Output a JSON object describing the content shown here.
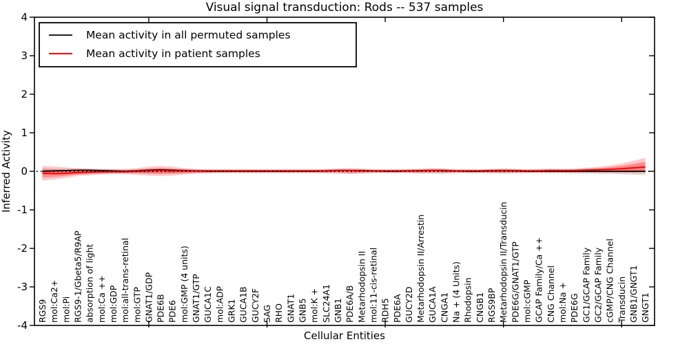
{
  "chart_data": {
    "type": "line",
    "title": "Visual signal transduction: Rods -- 537 samples",
    "xlabel": "Cellular Entities",
    "ylabel": "Inferred Activity",
    "ylim": [
      -4,
      4
    ],
    "yticks": [
      -4,
      -3,
      -2,
      -1,
      0,
      1,
      2,
      3,
      4
    ],
    "xtick_major_indices": [
      9,
      19,
      29,
      39,
      49
    ],
    "grid": false,
    "legend_position": "upper left",
    "zero_reference_line": true,
    "categories": [
      "RGS9",
      "mol:Ca2+",
      "mol:Pi",
      "RGS9-1/Gbeta5/R9AP",
      "absorption of light",
      "mol:Ca ++",
      "mol:GDP",
      "mol:all-trans-retinal",
      "mol:GTP",
      "GNAT1/GDP",
      "PDE6B",
      "PDE6",
      "mol:GMP (4 units)",
      "GNAT1/GTP",
      "GUCA1C",
      "mol:ADP",
      "GRK1",
      "GUCA1B",
      "GUCY2F",
      "SAG",
      "RHO",
      "GNAT1",
      "GNB5",
      "mol:K +",
      "SLC24A1",
      "GNB1",
      "PDE6A/B",
      "Metarhodopsin II",
      "mol:11-cis-retinal",
      "RDH5",
      "PDE6A",
      "GUCY2D",
      "Metarhodopsin II/Arrestin",
      "GUCA1A",
      "CNGA1",
      "Na + (4 Units)",
      "Rhodopsin",
      "CNGB1",
      "RGS9BP",
      "Metarhodopsin II/Transducin",
      "PDE6G/GNAT1/GTP",
      "mol:cGMP",
      "GCAP Family/Ca ++",
      "CNG Channel",
      "mol:Na +",
      "PDE6G",
      "GC1/GCAP Family",
      "GC2/GCAP Family",
      "cGMP/CNG Channel",
      "Transducin",
      "GNB1/GNGT1",
      "GNGT1"
    ],
    "series": [
      {
        "name": "Mean activity in all permuted samples",
        "color": "#000000",
        "band_color": "#999999",
        "band_opacity": 0.3,
        "inner_band": false,
        "values": [
          0.0,
          0.01,
          0.02,
          0.03,
          0.03,
          0.02,
          0.01,
          0.0,
          0.01,
          0.03,
          0.04,
          0.03,
          0.02,
          0.01,
          0.0,
          0.0,
          0.0,
          0.0,
          0.0,
          0.0,
          0.0,
          0.0,
          0.0,
          0.0,
          0.01,
          0.02,
          0.02,
          0.02,
          0.01,
          0.0,
          0.0,
          0.01,
          0.01,
          0.02,
          0.01,
          0.01,
          0.0,
          0.0,
          0.01,
          0.01,
          0.01,
          0.0,
          0.0,
          0.0,
          0.0,
          0.0,
          0.0,
          0.0,
          0.0,
          0.0,
          0.0,
          0.0
        ],
        "band_upper": [
          0.08,
          0.07,
          0.07,
          0.07,
          0.06,
          0.06,
          0.05,
          0.05,
          0.05,
          0.06,
          0.07,
          0.06,
          0.06,
          0.05,
          0.05,
          0.05,
          0.05,
          0.05,
          0.05,
          0.05,
          0.05,
          0.05,
          0.05,
          0.05,
          0.05,
          0.06,
          0.06,
          0.06,
          0.05,
          0.05,
          0.05,
          0.05,
          0.06,
          0.06,
          0.06,
          0.05,
          0.05,
          0.05,
          0.05,
          0.06,
          0.05,
          0.05,
          0.05,
          0.05,
          0.05,
          0.05,
          0.05,
          0.06,
          0.06,
          0.06,
          0.06,
          0.06
        ],
        "band_lower": [
          -0.08,
          -0.08,
          -0.07,
          -0.07,
          -0.06,
          -0.06,
          -0.05,
          -0.05,
          -0.05,
          -0.06,
          -0.07,
          -0.06,
          -0.06,
          -0.05,
          -0.05,
          -0.05,
          -0.05,
          -0.05,
          -0.05,
          -0.05,
          -0.05,
          -0.05,
          -0.05,
          -0.05,
          -0.05,
          -0.06,
          -0.06,
          -0.06,
          -0.05,
          -0.05,
          -0.05,
          -0.05,
          -0.06,
          -0.06,
          -0.06,
          -0.05,
          -0.05,
          -0.05,
          -0.05,
          -0.06,
          -0.05,
          -0.05,
          -0.05,
          -0.05,
          -0.05,
          -0.06,
          -0.06,
          -0.07,
          -0.07,
          -0.08,
          -0.09,
          -0.1
        ]
      },
      {
        "name": "Mean activity in patient samples",
        "color": "#ff0000",
        "band_color": "#ff0000",
        "band_opacity": 0.22,
        "inner_band": true,
        "values": [
          -0.05,
          -0.06,
          -0.05,
          -0.03,
          -0.02,
          -0.01,
          -0.01,
          -0.01,
          0.0,
          0.01,
          0.02,
          0.01,
          0.01,
          0.01,
          0.01,
          0.01,
          0.01,
          0.01,
          0.01,
          0.01,
          0.01,
          0.01,
          0.01,
          0.01,
          0.01,
          0.02,
          0.02,
          0.01,
          0.01,
          0.01,
          0.01,
          0.01,
          0.02,
          0.02,
          0.02,
          0.01,
          0.01,
          0.01,
          0.02,
          0.02,
          0.02,
          0.01,
          0.01,
          0.02,
          0.02,
          0.02,
          0.03,
          0.04,
          0.05,
          0.07,
          0.09,
          0.11
        ],
        "band_upper": [
          0.14,
          0.12,
          0.1,
          0.08,
          0.07,
          0.06,
          0.06,
          0.06,
          0.08,
          0.12,
          0.14,
          0.12,
          0.08,
          0.06,
          0.05,
          0.05,
          0.05,
          0.05,
          0.05,
          0.05,
          0.05,
          0.05,
          0.05,
          0.05,
          0.06,
          0.07,
          0.08,
          0.07,
          0.05,
          0.05,
          0.05,
          0.06,
          0.06,
          0.08,
          0.07,
          0.05,
          0.05,
          0.05,
          0.06,
          0.07,
          0.06,
          0.05,
          0.06,
          0.07,
          0.06,
          0.07,
          0.09,
          0.11,
          0.15,
          0.2,
          0.27,
          0.35
        ],
        "band_lower": [
          -0.24,
          -0.21,
          -0.17,
          -0.12,
          -0.1,
          -0.08,
          -0.07,
          -0.07,
          -0.09,
          -0.11,
          -0.12,
          -0.11,
          -0.08,
          -0.06,
          -0.05,
          -0.04,
          -0.04,
          -0.04,
          -0.04,
          -0.04,
          -0.04,
          -0.04,
          -0.04,
          -0.04,
          -0.05,
          -0.05,
          -0.07,
          -0.05,
          -0.04,
          -0.04,
          -0.04,
          -0.04,
          -0.05,
          -0.05,
          -0.05,
          -0.04,
          -0.04,
          -0.04,
          -0.05,
          -0.05,
          -0.05,
          -0.04,
          -0.04,
          -0.04,
          -0.04,
          -0.04,
          -0.04,
          -0.04,
          -0.04,
          -0.05,
          -0.05,
          -0.05
        ]
      }
    ]
  }
}
